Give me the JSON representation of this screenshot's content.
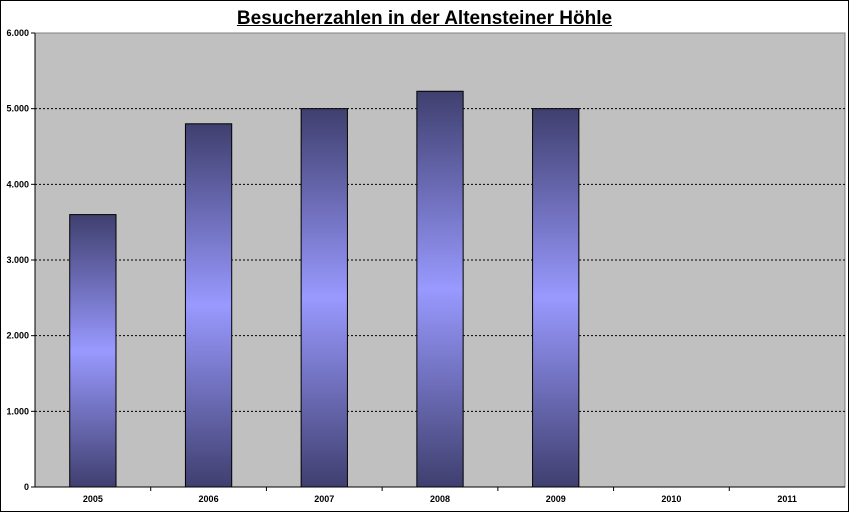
{
  "chart_data": {
    "type": "bar",
    "title": "Besucherzahlen in der Altensteiner Höhle",
    "categories": [
      "2005",
      "2006",
      "2007",
      "2008",
      "2009",
      "2010",
      "2011"
    ],
    "values": [
      3600,
      4800,
      5000,
      5230,
      5000,
      null,
      null
    ],
    "ylim": [
      0,
      6000
    ],
    "yticks": [
      0,
      1000,
      2000,
      3000,
      4000,
      5000,
      6000
    ],
    "ytick_labels": [
      "0",
      "1.000",
      "2.000",
      "3.000",
      "4.000",
      "5.000",
      "6.000"
    ],
    "xlabel": "",
    "ylabel": "",
    "grid": true,
    "legend": "none",
    "colors": {
      "plot_background": "#c0c0c0",
      "bar_dark": "#3f3f6f",
      "bar_light": "#9999ff",
      "gridline": "#000000"
    }
  }
}
